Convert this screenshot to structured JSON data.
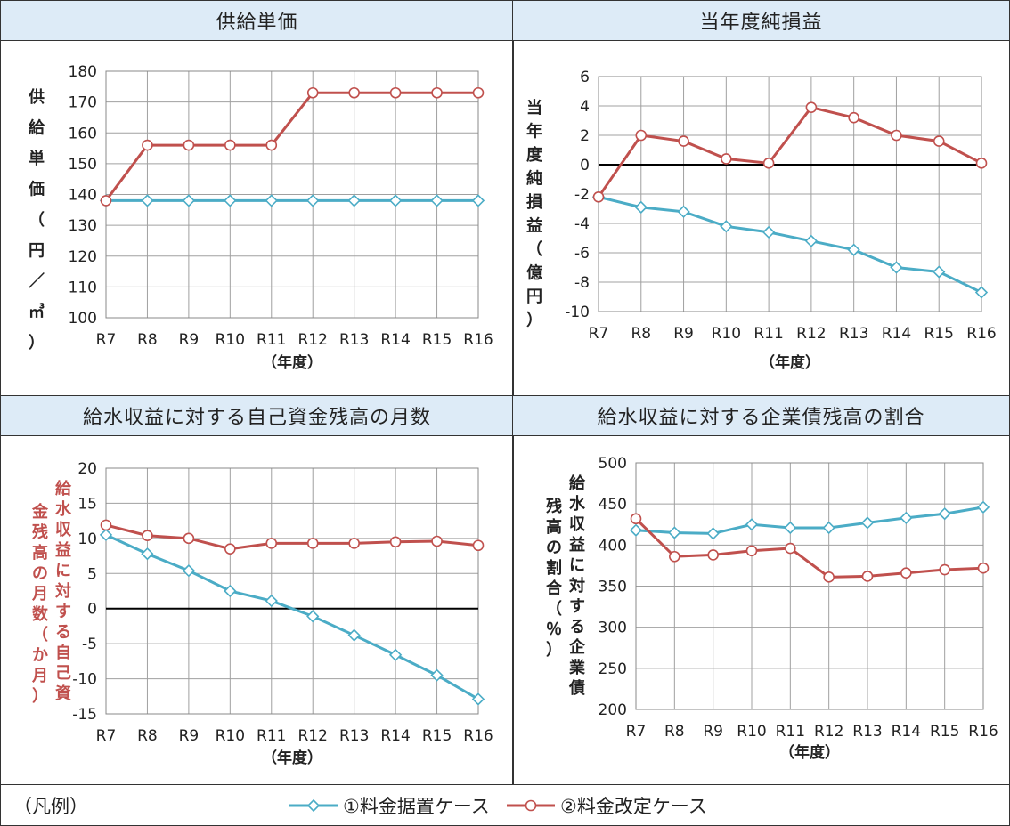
{
  "colors": {
    "case1": "#4BACC6",
    "case2": "#C0504D",
    "grid": "#A0A0A0",
    "header_bg": "#DDEBF7",
    "zero_line": "#000000"
  },
  "legend": {
    "title": "（凡例）",
    "case1_label": "①料金据置ケース",
    "case2_label": "②料金改定ケース",
    "case1_marker": "diamond",
    "case2_marker": "circle"
  },
  "chart_data": [
    {
      "type": "line",
      "title": "供給単価",
      "ylabel": "供給単価（円／㎥）",
      "xlabel": "（年度）",
      "categories": [
        "R7",
        "R8",
        "R9",
        "R10",
        "R11",
        "R12",
        "R13",
        "R14",
        "R15",
        "R16"
      ],
      "ylim": [
        100,
        180
      ],
      "yticks": [
        100,
        110,
        120,
        130,
        140,
        150,
        160,
        170,
        180
      ],
      "ylabel_color": "#222222",
      "grid": true,
      "series": [
        {
          "name": "①料金据置ケース",
          "values": [
            138,
            138,
            138,
            138,
            138,
            138,
            138,
            138,
            138,
            138
          ]
        },
        {
          "name": "②料金改定ケース",
          "values": [
            138,
            156,
            156,
            156,
            156,
            173,
            173,
            173,
            173,
            173
          ]
        }
      ]
    },
    {
      "type": "line",
      "title": "当年度純損益",
      "ylabel": "当年度純損益（億円）",
      "xlabel": "（年度）",
      "categories": [
        "R7",
        "R8",
        "R9",
        "R10",
        "R11",
        "R12",
        "R13",
        "R14",
        "R15",
        "R16"
      ],
      "ylim": [
        -10,
        6
      ],
      "yticks": [
        -10,
        -8,
        -6,
        -4,
        -2,
        0,
        2,
        4,
        6
      ],
      "ylabel_color": "#222222",
      "grid": true,
      "series": [
        {
          "name": "①料金据置ケース",
          "values": [
            -2.2,
            -2.9,
            -3.2,
            -4.2,
            -4.6,
            -5.2,
            -5.8,
            -7.0,
            -7.3,
            -8.7
          ]
        },
        {
          "name": "②料金改定ケース",
          "values": [
            -2.2,
            2.0,
            1.6,
            0.4,
            0.1,
            3.9,
            3.2,
            2.0,
            1.6,
            0.1
          ]
        }
      ]
    },
    {
      "type": "line",
      "title": "給水収益に対する自己資金残高の月数",
      "ylabel": "給水収益に対する自己資金残高の月数（か月）",
      "xlabel": "（年度）",
      "categories": [
        "R7",
        "R8",
        "R9",
        "R10",
        "R11",
        "R12",
        "R13",
        "R14",
        "R15",
        "R16"
      ],
      "ylim": [
        -15,
        20
      ],
      "yticks": [
        -15,
        -10,
        -5,
        0,
        5,
        10,
        15,
        20
      ],
      "ylabel_color": "#C0504D",
      "grid": true,
      "series": [
        {
          "name": "①料金据置ケース",
          "values": [
            10.5,
            7.8,
            5.4,
            2.5,
            1.1,
            -1.1,
            -3.8,
            -6.6,
            -9.5,
            -12.9
          ]
        },
        {
          "name": "②料金改定ケース",
          "values": [
            11.9,
            10.4,
            10.0,
            8.5,
            9.3,
            9.3,
            9.3,
            9.5,
            9.6,
            9.0
          ]
        }
      ]
    },
    {
      "type": "line",
      "title": "給水収益に対する企業債残高の割合",
      "ylabel": "給水収益に対する企業債残高の割合（％）",
      "xlabel": "（年度）",
      "categories": [
        "R7",
        "R8",
        "R9",
        "R10",
        "R11",
        "R12",
        "R13",
        "R14",
        "R15",
        "R16"
      ],
      "ylim": [
        200,
        500
      ],
      "yticks": [
        200,
        250,
        300,
        350,
        400,
        450,
        500
      ],
      "ylabel_color": "#222222",
      "grid": true,
      "series": [
        {
          "name": "①料金据置ケース",
          "values": [
            418,
            415,
            414,
            425,
            421,
            421,
            427,
            433,
            438,
            446
          ]
        },
        {
          "name": "②料金改定ケース",
          "values": [
            432,
            386,
            388,
            393,
            396,
            361,
            362,
            366,
            370,
            372
          ]
        }
      ]
    }
  ]
}
